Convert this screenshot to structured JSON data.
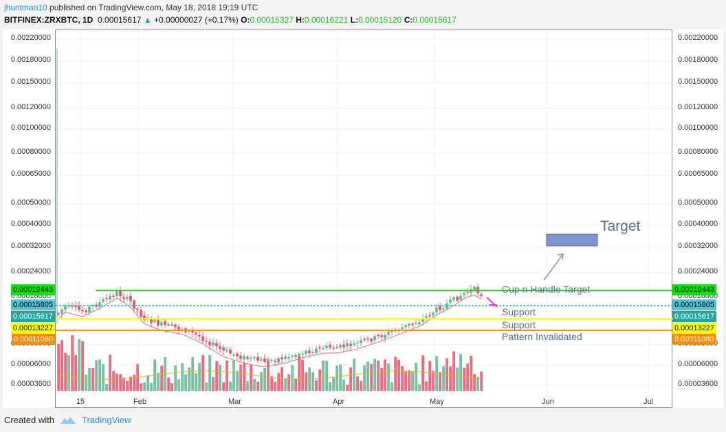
{
  "header": {
    "author": "jhuntman10",
    "published_text": " published on TradingView.com, May 18, 2018 19:19 UTC",
    "symbol": "BITFINEX:ZRXBTC, 1D",
    "last": "0.00015617",
    "change": "+0.00000027 (+0.17%)",
    "o_label": "O:",
    "o_value": "0.00015327",
    "h_label": "H:",
    "h_value": "0.00016221",
    "l_label": "L:",
    "l_value": "0.00015120",
    "c_label": "C:",
    "c_value": "0.00015617"
  },
  "price_axis": {
    "ticks": [
      "0.00220000",
      "0.00180000",
      "0.00150000",
      "0.00120000",
      "0.00100000",
      "0.00080000",
      "0.00065000",
      "0.00050000",
      "0.00040000",
      "0.00032000",
      "0.00024000",
      "0.00018000",
      "0.00008000",
      "0.00006000",
      "0.00003600"
    ],
    "tick_values": [
      0.0022,
      0.0018,
      0.0015,
      0.0012,
      0.001,
      0.0008,
      0.00065,
      0.0005,
      0.0004,
      0.00032,
      0.00024,
      0.00018,
      8e-05,
      6e-05,
      3.6e-05
    ]
  },
  "price_labels": [
    {
      "text": "0.00019443",
      "value": 0.00019443,
      "color": "#00e600",
      "textcolor": "#000000"
    },
    {
      "text": "0.00015805",
      "value": 0.00015805,
      "color": "#4fc3d4",
      "textcolor": "#000000"
    },
    {
      "text": "0.00015617",
      "value": 0.00015617,
      "color": "#26a69a",
      "textcolor": "#ffffff"
    },
    {
      "text": "0.00013227",
      "value": 0.00013227,
      "color": "#ffff00",
      "textcolor": "#000000"
    },
    {
      "text": "0.00011080",
      "value": 0.0001108,
      "color": "#ff8c00",
      "textcolor": "#ffffff"
    }
  ],
  "time_axis": {
    "labels": [
      "15",
      "Feb",
      "Mar",
      "Apr",
      "May",
      "Jun",
      "Jul"
    ]
  },
  "annotations": {
    "target": "Target",
    "cup_handle": "Cup n Handle Target",
    "support1": "Support",
    "support2": "Support",
    "invalidated": "Pattern Invalidated"
  },
  "footer": {
    "created_with": "Created with",
    "brand": "TradingView"
  },
  "colors": {
    "up": "#5cb98f",
    "down": "#ef5067",
    "ma_fast": "#f46a6a",
    "ma_vol": "#e6b422",
    "line_target": "#00e600",
    "line_support1": "#4fc3d4",
    "line_support2": "#ffff00",
    "line_invalid": "#ff8c00",
    "target_box": "#7f95cc"
  }
}
